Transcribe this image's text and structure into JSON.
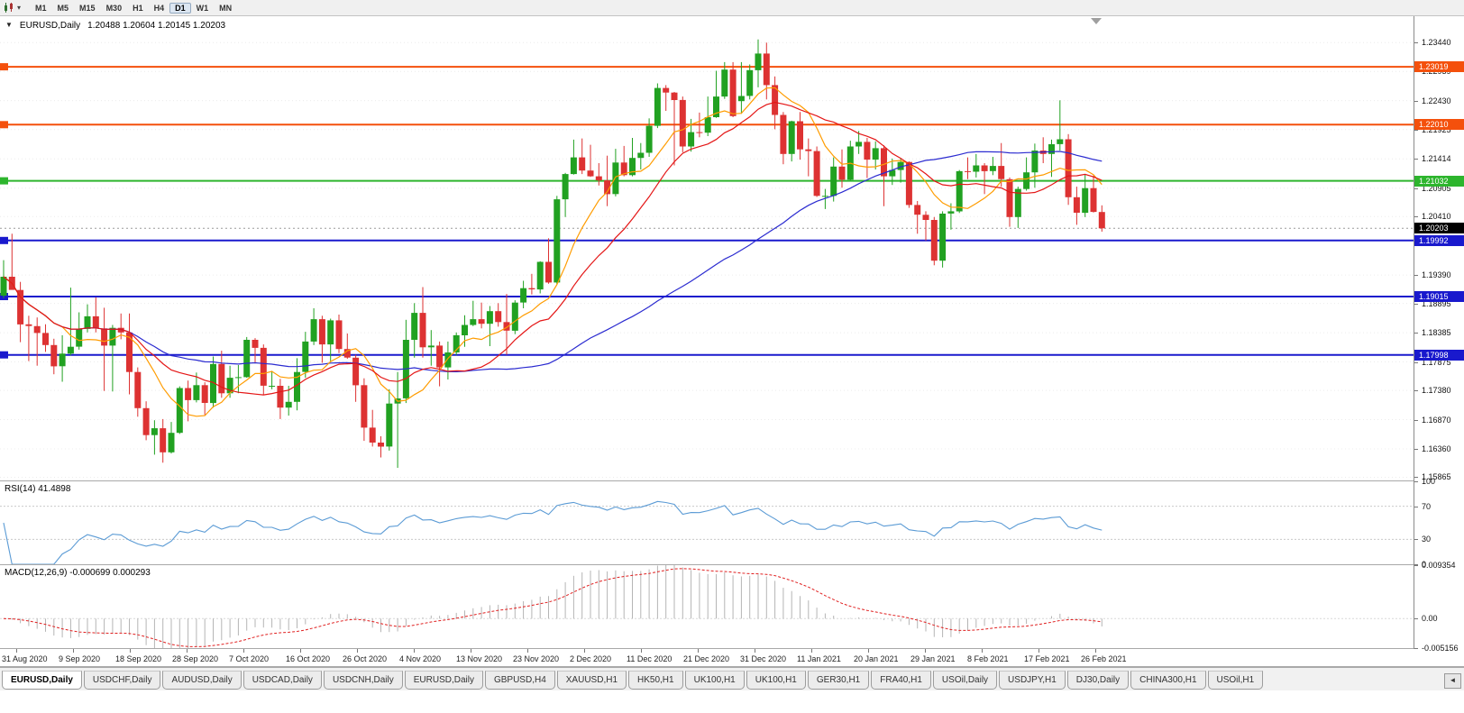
{
  "toolbar": {
    "dropdown_glyph": "▾",
    "timeframes": [
      "M1",
      "M5",
      "M15",
      "M30",
      "H1",
      "H4",
      "D1",
      "W1",
      "MN"
    ],
    "active_timeframe": "D1"
  },
  "chart": {
    "collapse_glyph": "▼",
    "symbol_label": "EURUSD,Daily",
    "ohlc": "1.20488 1.20604 1.20145 1.20203"
  },
  "chart_data": {
    "type": "candlestick",
    "symbol": "EURUSD",
    "timeframe": "Daily",
    "x_labels": [
      "31 Aug 2020",
      "9 Sep 2020",
      "18 Sep 2020",
      "28 Sep 2020",
      "7 Oct 2020",
      "16 Oct 2020",
      "26 Oct 2020",
      "4 Nov 2020",
      "13 Nov 2020",
      "23 Nov 2020",
      "2 Dec 2020",
      "11 Dec 2020",
      "21 Dec 2020",
      "31 Dec 2020",
      "11 Jan 2021",
      "20 Jan 2021",
      "29 Jan 2021",
      "8 Feb 2021",
      "17 Feb 2021",
      "26 Feb 2021"
    ],
    "price_axis": {
      "max": 1.239,
      "min": 1.1581,
      "ticks": [
        "1.23440",
        "1.22939",
        "1.22430",
        "1.21925",
        "1.21414",
        "1.20905",
        "1.20410",
        "1.19390",
        "1.18895",
        "1.18385",
        "1.17875",
        "1.17380",
        "1.16870",
        "1.16360",
        "1.15865"
      ]
    },
    "hlines": [
      {
        "price": 1.23019,
        "label": "1.23019",
        "color": "#f4500c"
      },
      {
        "price": 1.2201,
        "label": "1.22010",
        "color": "#f4500c"
      },
      {
        "price": 1.21032,
        "label": "1.21032",
        "color": "#2db52d"
      },
      {
        "price": 1.19992,
        "label": "1.19992",
        "color": "#1919cd"
      },
      {
        "price": 1.19015,
        "label": "1.19015",
        "color": "#1919cd"
      },
      {
        "price": 1.17998,
        "label": "1.17998",
        "color": "#1919cd"
      }
    ],
    "current_price": {
      "value": 1.20203,
      "label": "1.20203",
      "badge_color": "#000000"
    },
    "moving_averages": [
      {
        "period": 50,
        "color": "#2b2bd0"
      },
      {
        "period": 8,
        "color": "#ff9c00"
      },
      {
        "period": 16,
        "color": "#e41616"
      }
    ],
    "colors": {
      "bull": "#21a121",
      "bear": "#dd3232",
      "grid": "#ececec",
      "bid_line": "#9a9a9a"
    },
    "candles": [
      [
        1.1903,
        1.1965,
        1.1899,
        1.1936
      ],
      [
        1.1936,
        1.2011,
        1.193,
        1.1913
      ],
      [
        1.1913,
        1.1927,
        1.1822,
        1.1853
      ],
      [
        1.1853,
        1.1868,
        1.1789,
        1.185
      ],
      [
        1.185,
        1.1865,
        1.1781,
        1.1838
      ],
      [
        1.1838,
        1.1853,
        1.1805,
        1.1817
      ],
      [
        1.1817,
        1.1828,
        1.1766,
        1.178
      ],
      [
        1.178,
        1.1834,
        1.1753,
        1.1802
      ],
      [
        1.1802,
        1.1917,
        1.1799,
        1.1814
      ],
      [
        1.1814,
        1.1874,
        1.1809,
        1.1845
      ],
      [
        1.1845,
        1.1888,
        1.1839,
        1.1867
      ],
      [
        1.1867,
        1.19,
        1.1839,
        1.1846
      ],
      [
        1.1846,
        1.1882,
        1.1737,
        1.1816
      ],
      [
        1.1816,
        1.1852,
        1.1736,
        1.1847
      ],
      [
        1.1847,
        1.1872,
        1.1827,
        1.1839
      ],
      [
        1.1839,
        1.1872,
        1.1731,
        1.177
      ],
      [
        1.177,
        1.1778,
        1.1692,
        1.1707
      ],
      [
        1.1707,
        1.1719,
        1.1651,
        1.166
      ],
      [
        1.166,
        1.1686,
        1.1626,
        1.1672
      ],
      [
        1.1672,
        1.1688,
        1.1612,
        1.163
      ],
      [
        1.163,
        1.1683,
        1.1628,
        1.1664
      ],
      [
        1.1664,
        1.1745,
        1.1662,
        1.1742
      ],
      [
        1.1742,
        1.1755,
        1.1684,
        1.1721
      ],
      [
        1.1721,
        1.1769,
        1.1717,
        1.1747
      ],
      [
        1.1747,
        1.1752,
        1.1695,
        1.1716
      ],
      [
        1.1716,
        1.1797,
        1.1708,
        1.1784
      ],
      [
        1.1784,
        1.1807,
        1.1725,
        1.1733
      ],
      [
        1.1733,
        1.1781,
        1.1725,
        1.176
      ],
      [
        1.176,
        1.1782,
        1.1733,
        1.1761
      ],
      [
        1.1761,
        1.1831,
        1.176,
        1.1826
      ],
      [
        1.1826,
        1.1829,
        1.1785,
        1.1812
      ],
      [
        1.1812,
        1.1818,
        1.1731,
        1.1746
      ],
      [
        1.1746,
        1.1772,
        1.174,
        1.1746
      ],
      [
        1.1746,
        1.1758,
        1.1688,
        1.1708
      ],
      [
        1.1708,
        1.1746,
        1.1694,
        1.1718
      ],
      [
        1.1718,
        1.1794,
        1.1703,
        1.177
      ],
      [
        1.177,
        1.184,
        1.176,
        1.1823
      ],
      [
        1.1823,
        1.1881,
        1.1817,
        1.1862
      ],
      [
        1.1862,
        1.1868,
        1.1786,
        1.1818
      ],
      [
        1.1818,
        1.1863,
        1.1787,
        1.186
      ],
      [
        1.186,
        1.187,
        1.1803,
        1.181
      ],
      [
        1.181,
        1.1837,
        1.1793,
        1.1795
      ],
      [
        1.1795,
        1.18,
        1.1718,
        1.1747
      ],
      [
        1.1747,
        1.1759,
        1.165,
        1.1673
      ],
      [
        1.1673,
        1.1704,
        1.164,
        1.1647
      ],
      [
        1.1647,
        1.1658,
        1.1621,
        1.164
      ],
      [
        1.164,
        1.174,
        1.1633,
        1.1715
      ],
      [
        1.1715,
        1.177,
        1.1603,
        1.1724
      ],
      [
        1.1724,
        1.1861,
        1.1716,
        1.1826
      ],
      [
        1.1826,
        1.189,
        1.1795,
        1.1873
      ],
      [
        1.1873,
        1.1918,
        1.1795,
        1.1813
      ],
      [
        1.1813,
        1.1843,
        1.1781,
        1.1816
      ],
      [
        1.1816,
        1.1823,
        1.1745,
        1.1778
      ],
      [
        1.1778,
        1.1823,
        1.1757,
        1.1804
      ],
      [
        1.1804,
        1.1839,
        1.1799,
        1.1834
      ],
      [
        1.1834,
        1.1869,
        1.1814,
        1.1852
      ],
      [
        1.1852,
        1.1894,
        1.185,
        1.1862
      ],
      [
        1.1862,
        1.1891,
        1.1846,
        1.1854
      ],
      [
        1.1854,
        1.1885,
        1.1815,
        1.1876
      ],
      [
        1.1876,
        1.189,
        1.1849,
        1.1857
      ],
      [
        1.1857,
        1.1906,
        1.18,
        1.1842
      ],
      [
        1.1842,
        1.1895,
        1.1836,
        1.1891
      ],
      [
        1.1891,
        1.1929,
        1.1881,
        1.1916
      ],
      [
        1.1916,
        1.1941,
        1.1905,
        1.1914
      ],
      [
        1.1914,
        1.1963,
        1.1907,
        1.1962
      ],
      [
        1.1962,
        1.2003,
        1.1924,
        1.1926
      ],
      [
        1.1926,
        1.2077,
        1.1923,
        1.2071
      ],
      [
        1.2071,
        1.2117,
        1.204,
        1.2115
      ],
      [
        1.2115,
        1.2175,
        1.2114,
        1.2144
      ],
      [
        1.2144,
        1.2177,
        1.2115,
        1.2121
      ],
      [
        1.2121,
        1.2166,
        1.211,
        1.2111
      ],
      [
        1.2111,
        1.2134,
        1.2095,
        1.2104
      ],
      [
        1.2104,
        1.2147,
        1.2059,
        1.208
      ],
      [
        1.208,
        1.2159,
        1.2076,
        1.2135
      ],
      [
        1.2135,
        1.2164,
        1.2111,
        1.2113
      ],
      [
        1.2113,
        1.2178,
        1.2111,
        1.2143
      ],
      [
        1.2143,
        1.2169,
        1.2123,
        1.2152
      ],
      [
        1.2152,
        1.2212,
        1.2145,
        1.2199
      ],
      [
        1.2199,
        1.2273,
        1.2195,
        1.2265
      ],
      [
        1.2265,
        1.227,
        1.2225,
        1.2257
      ],
      [
        1.2257,
        1.2258,
        1.213,
        1.2244
      ],
      [
        1.2244,
        1.225,
        1.2153,
        1.2163
      ],
      [
        1.2163,
        1.2211,
        1.2154,
        1.2188
      ],
      [
        1.2188,
        1.2222,
        1.2179,
        1.2187
      ],
      [
        1.2187,
        1.225,
        1.2181,
        1.2214
      ],
      [
        1.2214,
        1.2295,
        1.2213,
        1.225
      ],
      [
        1.225,
        1.231,
        1.2246,
        1.2297
      ],
      [
        1.2297,
        1.231,
        1.2214,
        1.2216
      ],
      [
        1.2242,
        1.231,
        1.222,
        1.2251
      ],
      [
        1.2251,
        1.2306,
        1.2245,
        1.2296
      ],
      [
        1.2296,
        1.23495,
        1.2266,
        1.2325
      ],
      [
        1.2325,
        1.2344,
        1.2245,
        1.227
      ],
      [
        1.227,
        1.2285,
        1.2193,
        1.2218
      ],
      [
        1.2218,
        1.2223,
        1.2132,
        1.215
      ],
      [
        1.215,
        1.2208,
        1.2137,
        1.2207
      ],
      [
        1.2207,
        1.2223,
        1.214,
        1.2158
      ],
      [
        1.2158,
        1.2177,
        1.2111,
        1.2155
      ],
      [
        1.2155,
        1.2163,
        1.2075,
        1.2077
      ],
      [
        1.2077,
        1.2089,
        1.2054,
        1.2077
      ],
      [
        1.2077,
        1.2144,
        1.2067,
        1.2128
      ],
      [
        1.2128,
        1.2158,
        1.2091,
        1.2105
      ],
      [
        1.2105,
        1.2173,
        1.2104,
        1.2163
      ],
      [
        1.2163,
        1.219,
        1.215,
        1.2171
      ],
      [
        1.2171,
        1.2178,
        1.2108,
        1.214
      ],
      [
        1.214,
        1.2172,
        1.2123,
        1.216
      ],
      [
        1.216,
        1.2165,
        1.2059,
        1.2111
      ],
      [
        1.2111,
        1.2142,
        1.2096,
        1.2122
      ],
      [
        1.2122,
        1.2142,
        1.21,
        1.2136
      ],
      [
        1.2136,
        1.2137,
        1.2056,
        1.2061
      ],
      [
        1.2061,
        1.2068,
        1.2011,
        1.2044
      ],
      [
        1.2044,
        1.205,
        1.1999,
        1.2035
      ],
      [
        1.2035,
        1.204,
        1.1956,
        1.1964
      ],
      [
        1.1964,
        1.205,
        1.1952,
        1.2046
      ],
      [
        1.2046,
        1.2064,
        1.2018,
        1.205
      ],
      [
        1.205,
        1.2122,
        1.2047,
        1.212
      ],
      [
        1.212,
        1.2144,
        1.2106,
        1.2119
      ],
      [
        1.2119,
        1.215,
        1.2109,
        1.213
      ],
      [
        1.213,
        1.2134,
        1.208,
        1.212
      ],
      [
        1.212,
        1.2145,
        1.2113,
        1.2129
      ],
      [
        1.2129,
        1.2169,
        1.2093,
        1.2106
      ],
      [
        1.2106,
        1.2109,
        1.2023,
        1.204
      ],
      [
        1.204,
        1.2093,
        1.2021,
        1.2089
      ],
      [
        1.2089,
        1.2144,
        1.2086,
        1.2118
      ],
      [
        1.2118,
        1.2168,
        1.2091,
        1.2156
      ],
      [
        1.2156,
        1.2179,
        1.2134,
        1.215
      ],
      [
        1.215,
        1.2175,
        1.211,
        1.2167
      ],
      [
        1.2167,
        1.22435,
        1.2156,
        1.21755
      ],
      [
        1.21755,
        1.21845,
        1.20612,
        1.20745
      ],
      [
        1.20745,
        1.2093,
        1.20265,
        1.20475
      ],
      [
        1.20475,
        1.21135,
        1.204,
        1.20905
      ],
      [
        1.20905,
        1.21125,
        1.2048,
        1.2049
      ],
      [
        1.20488,
        1.20604,
        1.20145,
        1.20203
      ]
    ]
  },
  "rsi": {
    "label": "RSI(14) 41.4898",
    "period": 14,
    "value": "41.4898",
    "color": "#5b9bd5",
    "levels": [
      70,
      30
    ],
    "axis_labels": [
      "100",
      "70",
      "30",
      "0"
    ]
  },
  "macd": {
    "label": "MACD(12,26,9) -0.000699 0.000293",
    "fast": 12,
    "slow": 26,
    "signal": 9,
    "histogram_color": "#b5b5b5",
    "signal_color": "#e02020",
    "axis_max": 0.009354,
    "axis_min": -0.005156,
    "axis_labels": [
      "0.009354",
      "0.00",
      "-0.005156"
    ]
  },
  "tabs": {
    "scroll_left_icon": "◄",
    "items": [
      {
        "label": "EURUSD,Daily",
        "active": true
      },
      {
        "label": "USDCHF,Daily",
        "active": false
      },
      {
        "label": "AUDUSD,Daily",
        "active": false
      },
      {
        "label": "USDCAD,Daily",
        "active": false
      },
      {
        "label": "USDCNH,Daily",
        "active": false
      },
      {
        "label": "EURUSD,Daily",
        "active": false
      },
      {
        "label": "GBPUSD,H4",
        "active": false
      },
      {
        "label": "XAUUSD,H1",
        "active": false
      },
      {
        "label": "HK50,H1",
        "active": false
      },
      {
        "label": "UK100,H1",
        "active": false
      },
      {
        "label": "UK100,H1",
        "active": false
      },
      {
        "label": "GER30,H1",
        "active": false
      },
      {
        "label": "FRA40,H1",
        "active": false
      },
      {
        "label": "USOil,Daily",
        "active": false
      },
      {
        "label": "USDJPY,H1",
        "active": false
      },
      {
        "label": "DJ30,Daily",
        "active": false
      },
      {
        "label": "CHINA300,H1",
        "active": false
      },
      {
        "label": "USOil,H1",
        "active": false
      }
    ]
  }
}
